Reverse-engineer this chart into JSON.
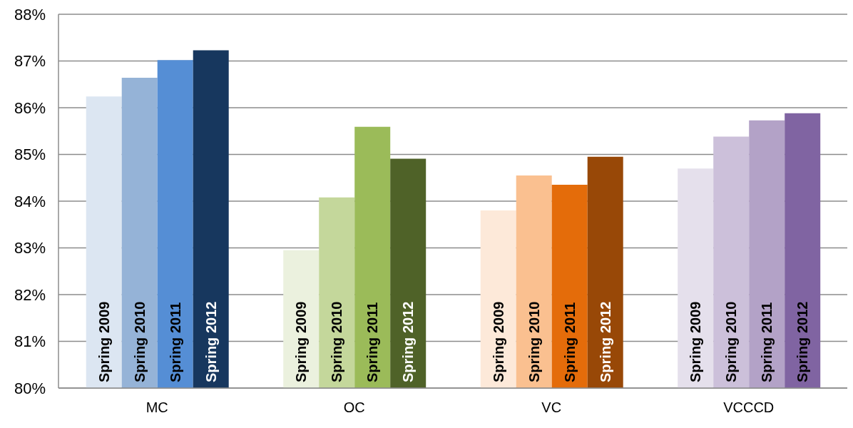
{
  "chart_data": {
    "type": "bar",
    "categories": [
      "MC",
      "OC",
      "VC",
      "VCCCD"
    ],
    "series": [
      {
        "name": "Spring 2009",
        "colors": [
          "#dce6f2",
          "#ebf1de",
          "#fde9d9",
          "#e5e0ec"
        ],
        "values": [
          86.24,
          82.95,
          83.8,
          84.7
        ]
      },
      {
        "name": "Spring 2010",
        "colors": [
          "#95b3d7",
          "#c4d79b",
          "#fac090",
          "#ccc0da"
        ],
        "values": [
          86.64,
          84.08,
          84.55,
          85.38
        ]
      },
      {
        "name": "Spring 2011",
        "colors": [
          "#558ed5",
          "#9bbb59",
          "#e46c0a",
          "#b3a2c7"
        ],
        "values": [
          87.02,
          85.59,
          84.35,
          85.73
        ]
      },
      {
        "name": "Spring 2012",
        "colors": [
          "#17375e",
          "#4f6228",
          "#984807",
          "#8064a2"
        ],
        "values": [
          87.23,
          84.91,
          84.95,
          85.88
        ]
      }
    ],
    "ylim": [
      80,
      88
    ],
    "yticks": [
      {
        "value": 80,
        "label": "80%"
      },
      {
        "value": 81,
        "label": "81%"
      },
      {
        "value": 82,
        "label": "82%"
      },
      {
        "value": 83,
        "label": "83%"
      },
      {
        "value": 84,
        "label": "84%"
      },
      {
        "value": 85,
        "label": "85%"
      },
      {
        "value": 86,
        "label": "86%"
      },
      {
        "value": 87,
        "label": "87%"
      },
      {
        "value": 88,
        "label": "88%"
      }
    ],
    "grid": "y",
    "legend": false
  }
}
